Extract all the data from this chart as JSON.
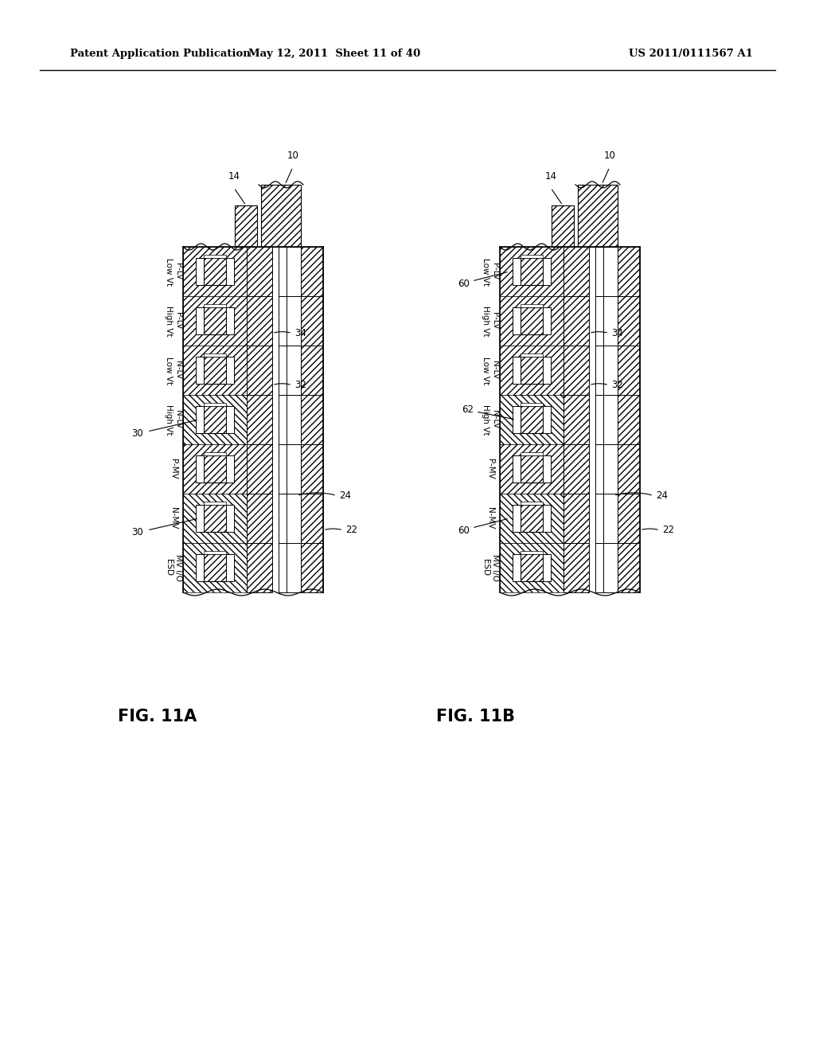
{
  "header_left": "Patent Application Publication",
  "header_mid": "May 12, 2011  Sheet 11 of 40",
  "header_right": "US 2011/0111567 A1",
  "fig_a_label": "FIG. 11A",
  "fig_b_label": "FIG. 11B",
  "bg_color": "#ffffff",
  "line_color": "#000000",
  "region_labels": [
    "MV I/O\nESD",
    "N-MV",
    "P-MV",
    "N-LV\nHigh Vt",
    "N-LV\nLow Vt",
    "P-LV\nHigh Vt",
    "P-LV\nLow Vt"
  ]
}
